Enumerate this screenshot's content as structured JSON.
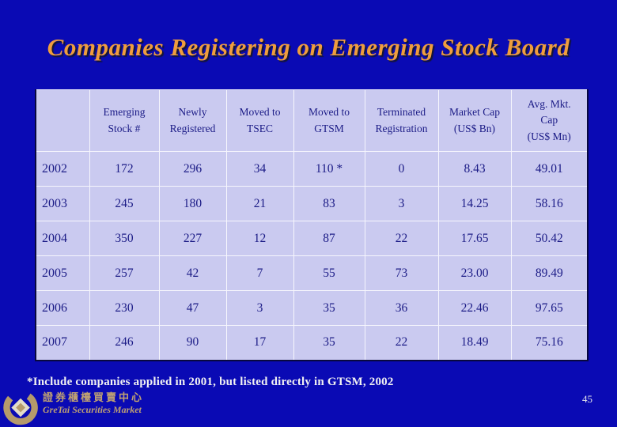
{
  "slide": {
    "title": "Companies Registering on Emerging Stock Board",
    "footnote": "*Include companies applied in 2001, but listed directly in GTSM, 2002",
    "page_number": "45"
  },
  "table": {
    "columns": [
      "",
      "Emerging\nStock #",
      "Newly\nRegistered",
      "Moved to\nTSEC",
      "Moved to\nGTSM",
      "Terminated\nRegistration",
      "Market Cap\n(US$ Bn)",
      "Avg. Mkt.\nCap\n(US$ Mn)"
    ],
    "rows": [
      {
        "year": "2002",
        "values": [
          "172",
          "296",
          "34",
          "110 *",
          "0",
          "8.43",
          "49.01"
        ]
      },
      {
        "year": "2003",
        "values": [
          "245",
          "180",
          "21",
          "83",
          "3",
          "14.25",
          "58.16"
        ]
      },
      {
        "year": "2004",
        "values": [
          "350",
          "227",
          "12",
          "87",
          "22",
          "17.65",
          "50.42"
        ]
      },
      {
        "year": "2005",
        "values": [
          "257",
          "42",
          "7",
          "55",
          "73",
          "23.00",
          "89.49"
        ]
      },
      {
        "year": "2006",
        "values": [
          "230",
          "47",
          "3",
          "35",
          "36",
          "22.46",
          "97.65"
        ]
      },
      {
        "year": "2007",
        "values": [
          "246",
          "90",
          "17",
          "35",
          "22",
          "18.49",
          "75.16"
        ]
      }
    ]
  },
  "logo": {
    "chinese_name": "證券櫃檯買賣中心",
    "english_name": "GreTai Securities Market"
  },
  "colors": {
    "background": "#0a0ab4",
    "title": "#ef9d3e",
    "table_background": "#cacaf0",
    "table_text": "#1b1b86",
    "footnote_text": "#f2f2f2",
    "logo_gold": "#bfa173"
  }
}
